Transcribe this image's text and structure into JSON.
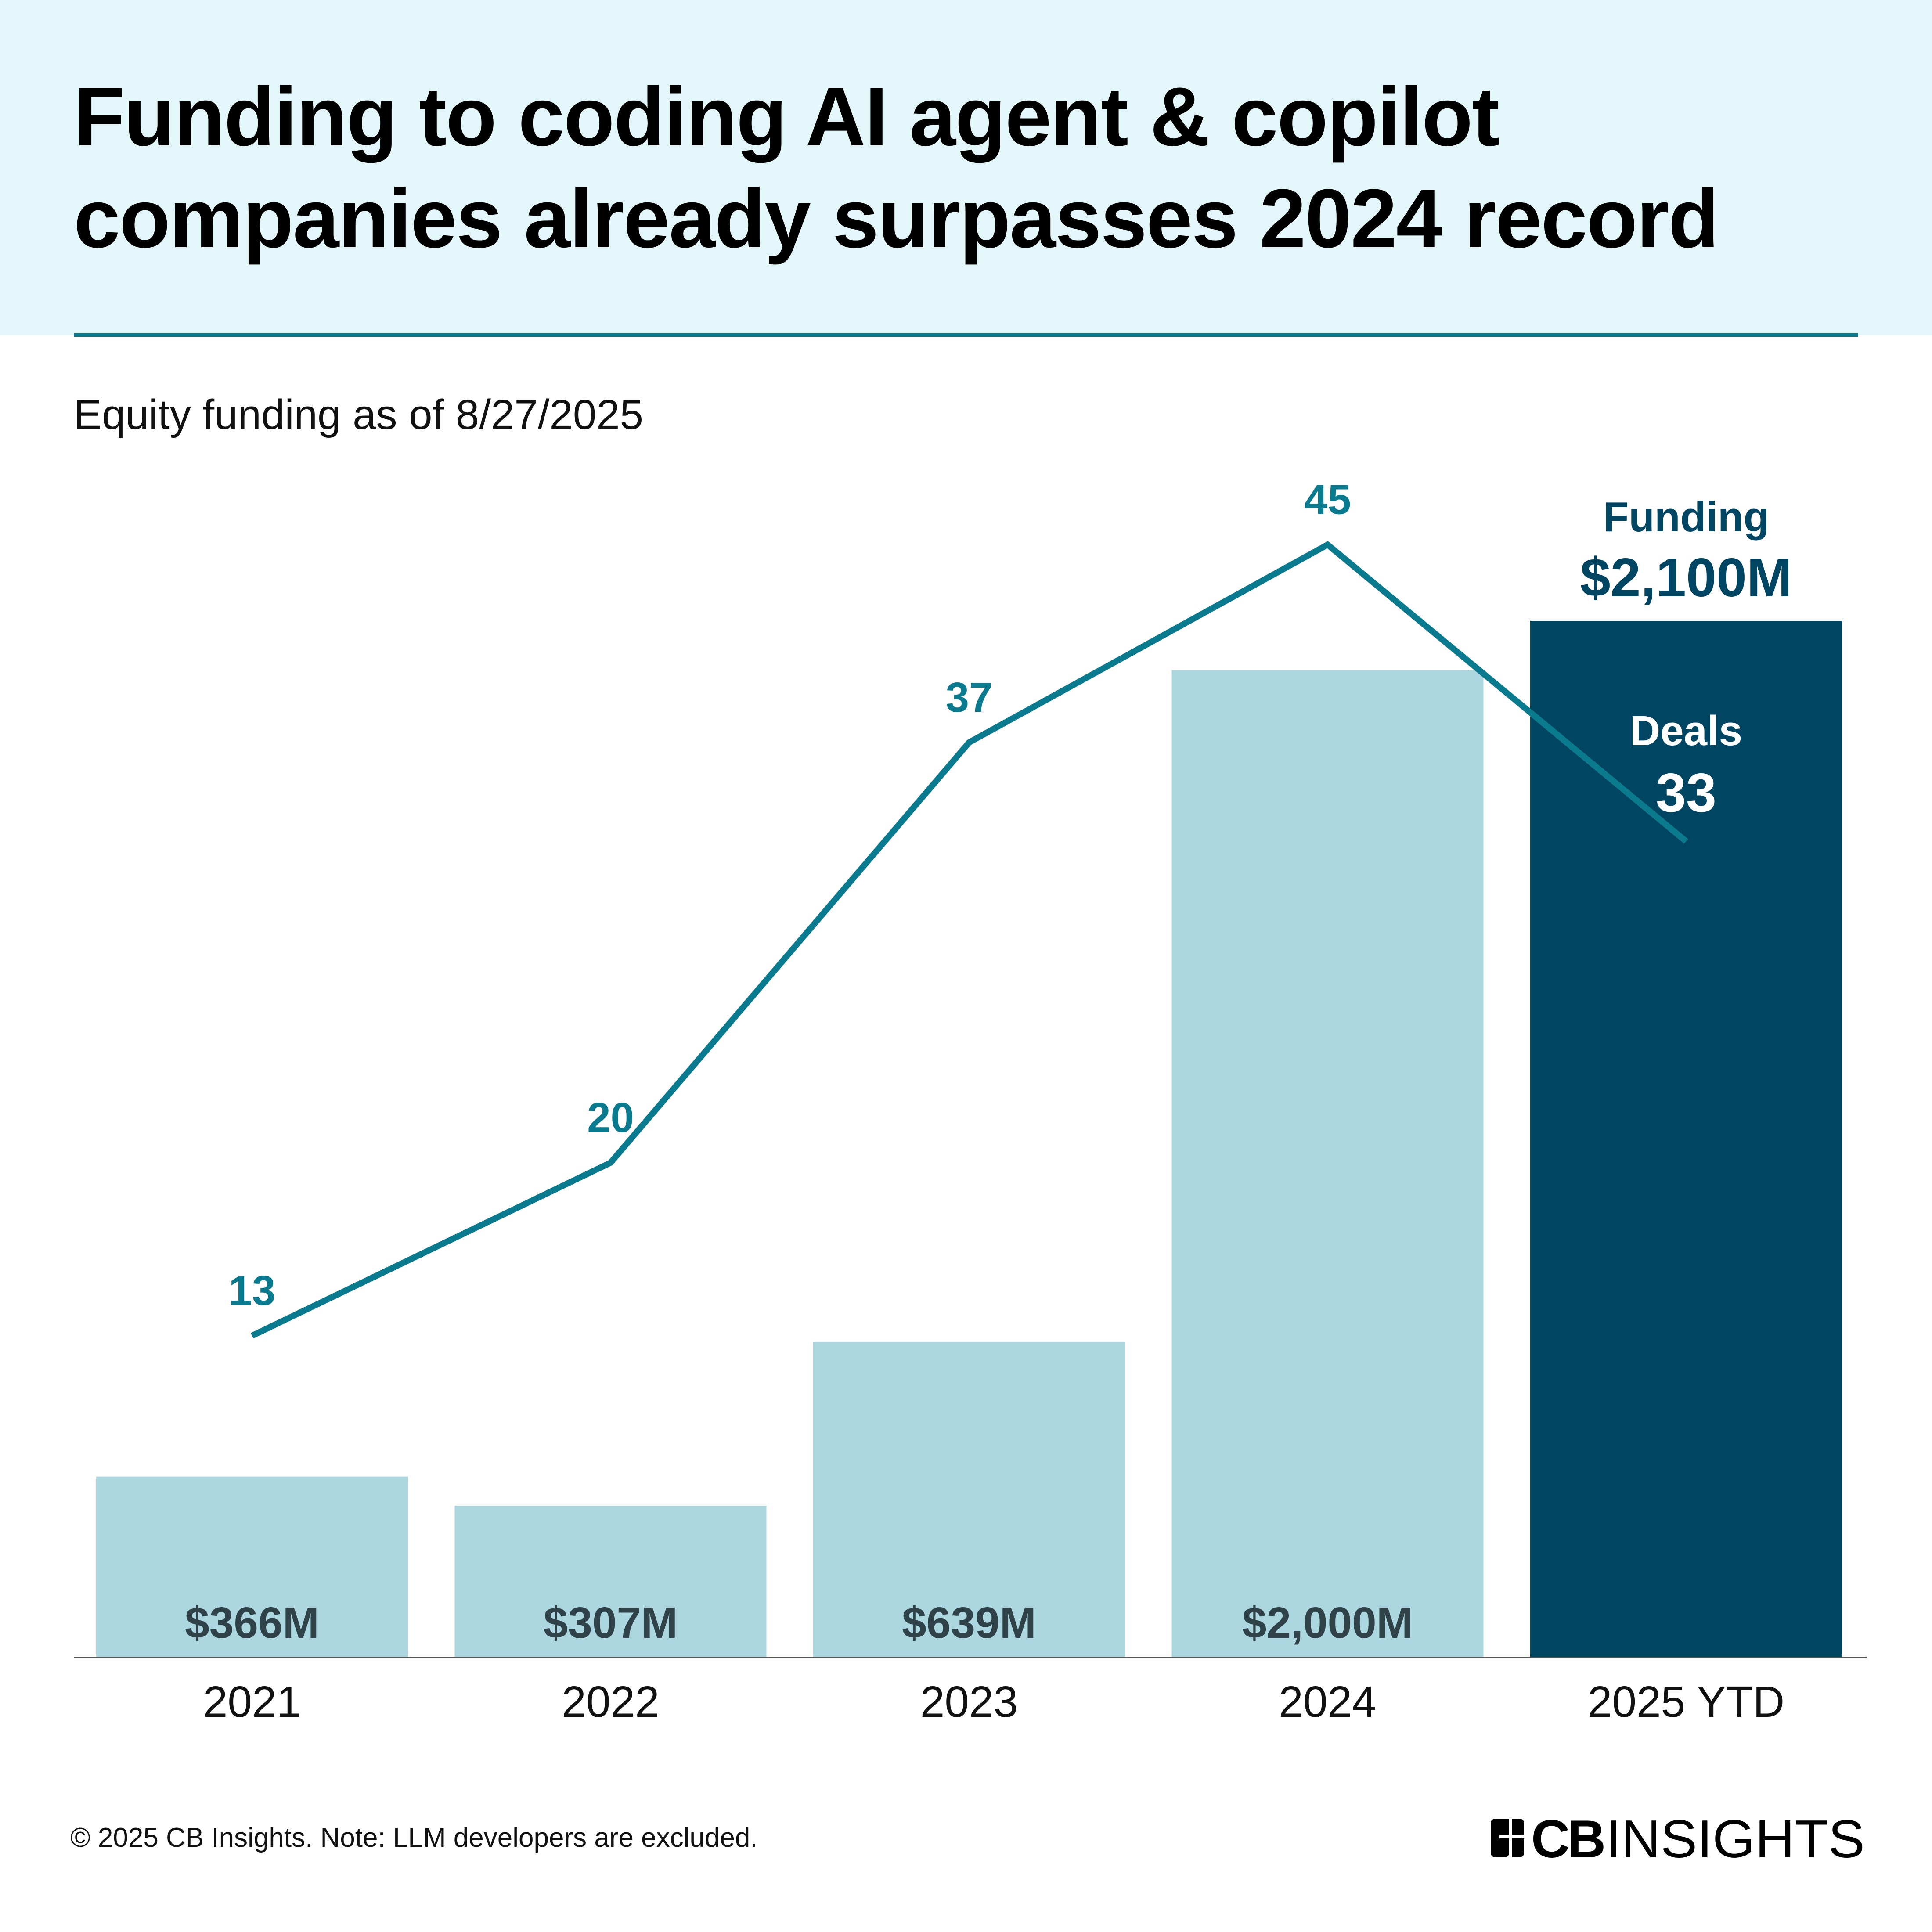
{
  "header": {
    "title_line1": "Funding to coding AI agent & copilot",
    "title_line2": "companies already surpasses 2024 record"
  },
  "subtitle": "Equity funding as of 8/27/2025",
  "footer": {
    "note": "© 2025 CB Insights. Note: LLM developers are excluded.",
    "logo": "CBINSIGHTS"
  },
  "colors": {
    "bar": "#acd7e0",
    "bar_highlight": "#004562",
    "line": "#0a7a8f",
    "bar_label": "#2f4248"
  },
  "chart_data": {
    "type": "bar",
    "title": "Funding to coding AI agent & copilot companies already surpasses 2024 record",
    "categories": [
      "2021",
      "2022",
      "2023",
      "2024",
      "2025 YTD"
    ],
    "series": [
      {
        "name": "Funding",
        "unit": "$M",
        "type": "bar",
        "values": [
          366,
          307,
          639,
          2000,
          2100
        ],
        "labels": [
          "$366M",
          "$307M",
          "$639M",
          "$2,000M",
          "$2,100M"
        ]
      },
      {
        "name": "Deals",
        "type": "line",
        "values": [
          13,
          20,
          37,
          45,
          33
        ],
        "labels": [
          "13",
          "20",
          "37",
          "45",
          "33"
        ]
      }
    ],
    "legend": {
      "funding": "Funding",
      "deals": "Deals"
    }
  }
}
